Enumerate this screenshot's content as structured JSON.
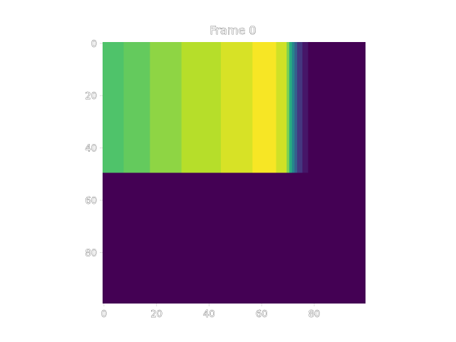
{
  "chart_data": {
    "type": "heatmap",
    "title": "Frame 0",
    "xlabel": "",
    "ylabel": "",
    "grid": false,
    "colormap": "viridis",
    "shape": [
      100,
      100
    ],
    "xlim": [
      -0.5,
      99.5
    ],
    "ylim": [
      99.5,
      -0.5
    ],
    "x_ticks": [
      0,
      20,
      40,
      60,
      80
    ],
    "x_tick_labels": [
      "0",
      "20",
      "40",
      "60",
      "80"
    ],
    "y_ticks": [
      0,
      20,
      40,
      60,
      80
    ],
    "y_tick_labels": [
      "0",
      "20",
      "40",
      "60",
      "80"
    ],
    "background_value": 0,
    "value_range": [
      0,
      1
    ],
    "filled_region": {
      "rows": [
        0,
        49
      ],
      "cols": [
        0,
        77
      ]
    },
    "column_bands": [
      {
        "cols": [
          0,
          7
        ],
        "value": 0.72
      },
      {
        "cols": [
          8,
          17
        ],
        "value": 0.76
      },
      {
        "cols": [
          18,
          29
        ],
        "value": 0.83
      },
      {
        "cols": [
          30,
          44
        ],
        "value": 0.89
      },
      {
        "cols": [
          45,
          56
        ],
        "value": 0.94
      },
      {
        "cols": [
          57,
          65
        ],
        "value": 0.99
      },
      {
        "cols": [
          66,
          69
        ],
        "value": 0.93
      },
      {
        "cols": [
          70,
          70
        ],
        "value": 0.8
      },
      {
        "cols": [
          71,
          71
        ],
        "value": 0.62
      },
      {
        "cols": [
          72,
          72
        ],
        "value": 0.45
      },
      {
        "cols": [
          73,
          73
        ],
        "value": 0.3
      },
      {
        "cols": [
          74,
          75
        ],
        "value": 0.16
      },
      {
        "cols": [
          76,
          77
        ],
        "value": 0.06
      }
    ]
  }
}
